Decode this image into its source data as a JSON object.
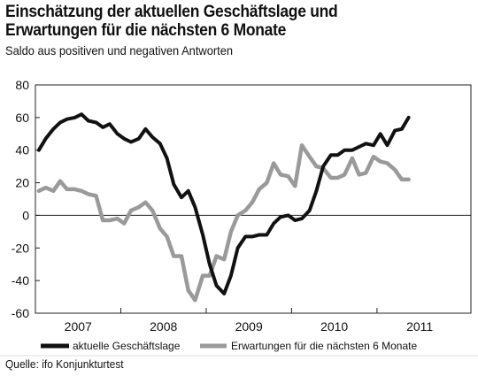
{
  "title_line1": "Einschätzung der aktuellen Geschäftslage und",
  "title_line2": "Erwartungen für die nächsten 6 Monate",
  "subtitle": "Saldo aus positiven und negativen Antworten",
  "source": "Quelle: ifo Konjunkturtest",
  "chart_data": {
    "type": "line",
    "ylim": [
      -60,
      80
    ],
    "yticks": [
      "80",
      "60",
      "40",
      "20",
      "0",
      "-20",
      "-40",
      "-60"
    ],
    "ytick_values": [
      80,
      60,
      40,
      20,
      0,
      -20,
      -40,
      -60
    ],
    "xlim": [
      2006.5,
      2011.6
    ],
    "year_labels": [
      "2007",
      "2008",
      "2009",
      "2010",
      "2011"
    ],
    "year_positions": [
      2007.0,
      2008.0,
      2009.0,
      2010.0,
      2011.0
    ],
    "year_boundaries": [
      2006.5,
      2007.5,
      2008.5,
      2009.5,
      2010.5
    ],
    "grid": false,
    "zero_line": true,
    "legend_position": "bottom",
    "colors": {
      "business": "#111111",
      "expectations": "#9a9a9a"
    },
    "series": [
      {
        "key": "business",
        "name": "aktuelle Geschäftslage",
        "x": [
          2006.54,
          2006.62,
          2006.71,
          2006.79,
          2006.87,
          2006.96,
          2007.04,
          2007.12,
          2007.21,
          2007.29,
          2007.37,
          2007.46,
          2007.54,
          2007.62,
          2007.71,
          2007.79,
          2007.87,
          2007.96,
          2008.04,
          2008.12,
          2008.21,
          2008.29,
          2008.37,
          2008.46,
          2008.54,
          2008.62,
          2008.71,
          2008.79,
          2008.87,
          2008.96,
          2009.04,
          2009.12,
          2009.21,
          2009.29,
          2009.37,
          2009.46,
          2009.54,
          2009.62,
          2009.71,
          2009.79,
          2009.87,
          2009.96,
          2010.04,
          2010.12,
          2010.21,
          2010.29,
          2010.37,
          2010.46,
          2010.54,
          2010.62,
          2010.71,
          2010.79,
          2010.87
        ],
        "values": [
          40,
          47,
          53,
          57,
          59,
          60,
          62,
          58,
          57,
          54,
          56,
          50,
          47,
          45,
          47,
          53,
          48,
          44,
          35,
          19,
          11,
          15,
          5,
          -12,
          -30,
          -43,
          -48,
          -37,
          -20,
          -13,
          -13,
          -12,
          -12,
          -5,
          -1,
          0,
          -3,
          -2,
          3,
          15,
          30,
          37,
          37,
          40,
          40,
          42,
          44,
          43,
          50,
          43,
          52,
          53,
          60
        ]
      },
      {
        "key": "expectations",
        "name": "Erwartungen für die nächsten 6 Monate",
        "x": [
          2006.54,
          2006.62,
          2006.71,
          2006.79,
          2006.87,
          2006.96,
          2007.04,
          2007.12,
          2007.21,
          2007.29,
          2007.37,
          2007.46,
          2007.54,
          2007.62,
          2007.71,
          2007.79,
          2007.87,
          2007.96,
          2008.04,
          2008.12,
          2008.21,
          2008.29,
          2008.37,
          2008.46,
          2008.54,
          2008.62,
          2008.71,
          2008.79,
          2008.87,
          2008.96,
          2009.04,
          2009.12,
          2009.21,
          2009.29,
          2009.37,
          2009.46,
          2009.54,
          2009.62,
          2009.71,
          2009.79,
          2009.87,
          2009.96,
          2010.04,
          2010.12,
          2010.21,
          2010.29,
          2010.37,
          2010.46,
          2010.54,
          2010.62,
          2010.71,
          2010.79,
          2010.87
        ],
        "values": [
          15,
          17,
          15,
          21,
          16,
          16,
          15,
          13,
          12,
          -3,
          -3,
          -2,
          -5,
          3,
          5,
          8,
          3,
          -8,
          -13,
          -25,
          -25,
          -46,
          -52,
          -37,
          -37,
          -25,
          -27,
          -10,
          0,
          3,
          8,
          16,
          20,
          32,
          25,
          24,
          18,
          43,
          36,
          30,
          29,
          23,
          23,
          25,
          35,
          25,
          26,
          36,
          33,
          32,
          28,
          22,
          22
        ]
      }
    ]
  }
}
